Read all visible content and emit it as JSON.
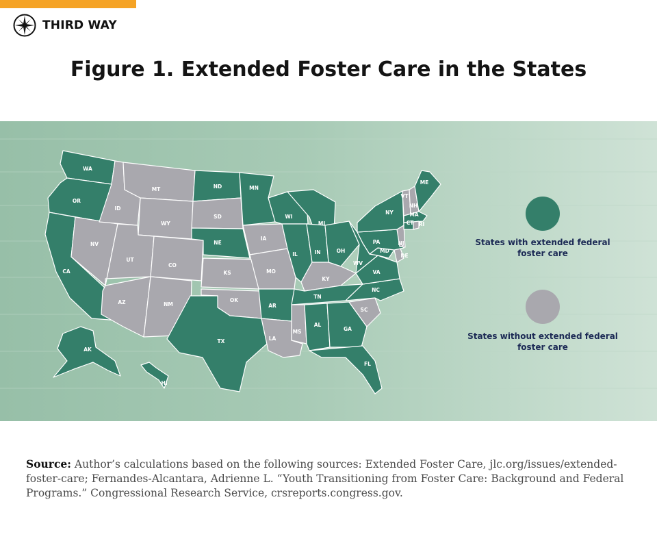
{
  "header": {
    "accent_color": "#f5a325",
    "logo_icon": "compass-rose-icon",
    "logo_text": "THIRD WAY",
    "title": "Figure 1. Extended Foster Care in the States"
  },
  "map": {
    "colors": {
      "with": "#347f6a",
      "without": "#a9a8ae",
      "background": "#a7cab5"
    },
    "states_with_extended_care": [
      "WA",
      "OR",
      "CA",
      "AK",
      "HI",
      "ND",
      "MN",
      "NE",
      "TX",
      "AR",
      "WI",
      "IL",
      "IN",
      "MI",
      "OH",
      "TN",
      "AL",
      "GA",
      "FL",
      "NC",
      "VA",
      "WV",
      "MD",
      "PA",
      "NY",
      "ME",
      "MA",
      "CT"
    ],
    "states_without_extended_care": [
      "MT",
      "ID",
      "WY",
      "SD",
      "NV",
      "UT",
      "CO",
      "AZ",
      "NM",
      "KS",
      "OK",
      "IA",
      "MO",
      "LA",
      "MS",
      "KY",
      "SC",
      "VT",
      "NH",
      "RI",
      "NJ",
      "DE"
    ]
  },
  "legend": {
    "with_label": "States with extended federal foster care",
    "without_label": "States without extended federal foster care"
  },
  "source": {
    "label": "Source:",
    "text": " Author’s calculations based on the following sources: Extended Foster Care, jlc.org/issues/extended-foster-care; Fernandes-Alcantara, Adrienne L. “Youth Transitioning from Foster Care: Background and Federal Programs.” Congressional Research Service, crsreports.congress.gov."
  }
}
